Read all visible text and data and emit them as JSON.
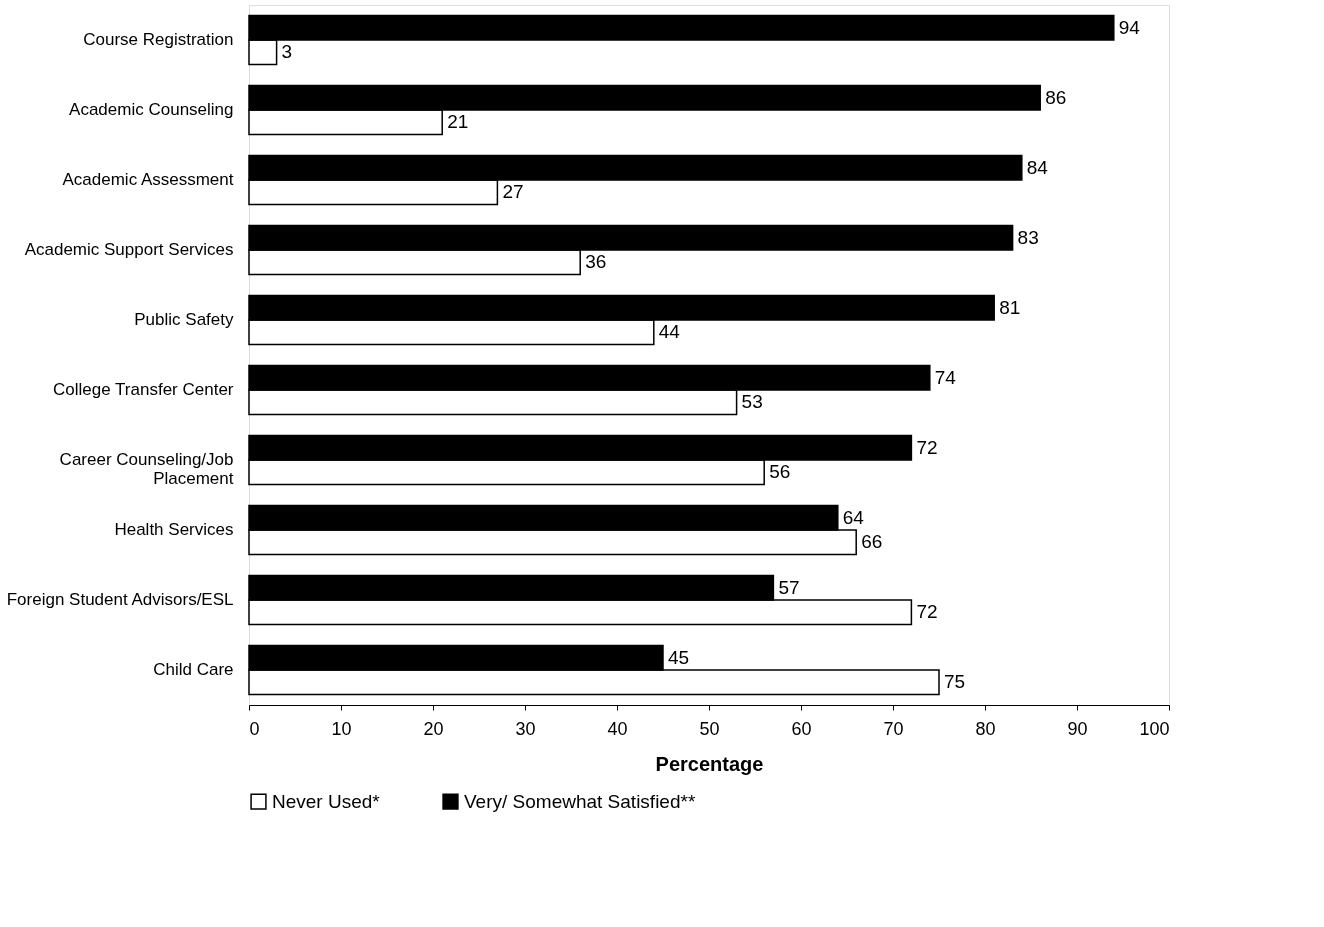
{
  "chart_data": {
    "type": "bar",
    "orientation": "horizontal",
    "xlabel": "Percentage",
    "categories": [
      "Course Registration",
      "Academic Counseling",
      "Academic Assessment",
      "Academic Support Services",
      "Public Safety",
      "College Transfer Center",
      "Career Counseling/Job Placement",
      "Health Services",
      "Foreign Student Advisors/ESL",
      "Child Care"
    ],
    "series": [
      {
        "name": "Never Used*",
        "color": "#ffffff",
        "values": [
          3,
          21,
          27,
          36,
          44,
          53,
          56,
          66,
          72,
          75
        ]
      },
      {
        "name": "Very/ Somewhat Satisfied**",
        "color": "#000000",
        "values": [
          94,
          86,
          84,
          83,
          81,
          74,
          72,
          64,
          57,
          45
        ]
      }
    ],
    "xlim": [
      0,
      100
    ],
    "xticks": [
      0,
      10,
      20,
      30,
      40,
      50,
      60,
      70,
      80,
      90,
      100
    ],
    "data_labels": true,
    "grid": false,
    "legend": "bottom left"
  }
}
